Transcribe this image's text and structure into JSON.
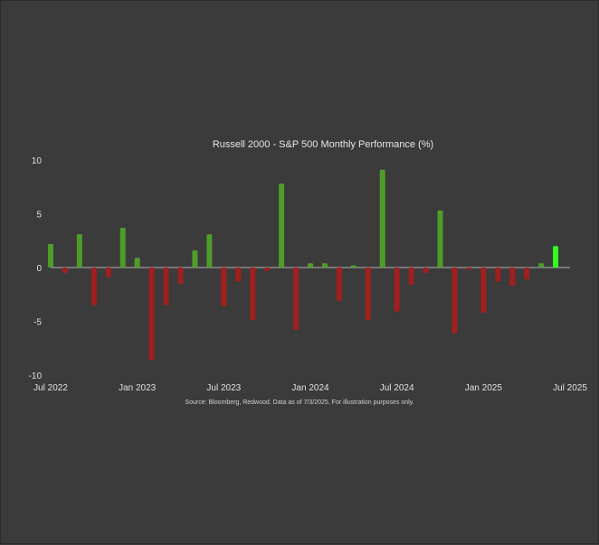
{
  "chart_data": {
    "type": "bar",
    "title": "Russell 2000 - S&P 500 Monthly Performance (%)",
    "source": "Source: Bloomberg, Redwood. Data as of 7/3/2025. For illustration purposes only.",
    "ylim": [
      -10,
      10
    ],
    "yticks": [
      10,
      5,
      0,
      -5,
      -10
    ],
    "xtick_labels": [
      "Jul 2022",
      "Jan 2023",
      "Jul 2023",
      "Jan 2024",
      "Jul 2024",
      "Jan 2025",
      "Jul 2025"
    ],
    "grid": false,
    "categories": [
      "Jul 2022",
      "Aug 2022",
      "Sep 2022",
      "Oct 2022",
      "Nov 2022",
      "Dec 2022",
      "Jan 2023",
      "Feb 2023",
      "Mar 2023",
      "Apr 2023",
      "May 2023",
      "Jun 2023",
      "Jul 2023",
      "Aug 2023",
      "Sep 2023",
      "Oct 2023",
      "Nov 2023",
      "Dec 2023",
      "Jan 2024",
      "Feb 2024",
      "Mar 2024",
      "Apr 2024",
      "May 2024",
      "Jun 2024",
      "Jul 2024",
      "Aug 2024",
      "Sep 2024",
      "Oct 2024",
      "Nov 2024",
      "Dec 2024",
      "Jan 2025",
      "Feb 2025",
      "Mar 2025",
      "Apr 2025",
      "May 2025",
      "Jun 2025",
      "Jul 2025"
    ],
    "values": [
      2.2,
      -0.5,
      3.1,
      -3.5,
      -0.9,
      3.7,
      0.9,
      -8.6,
      -3.5,
      -1.5,
      1.6,
      3.1,
      -3.6,
      -1.3,
      -4.9,
      -0.3,
      7.8,
      -5.8,
      0.4,
      0.4,
      -3.1,
      0.2,
      -4.9,
      9.1,
      -4.1,
      -1.6,
      -0.5,
      5.3,
      -6.1,
      -0.2,
      -4.2,
      -1.3,
      -1.7,
      -1.1,
      0.4,
      2.0,
      0.0
    ],
    "colors": {
      "positive": "#4f9c2a",
      "negative": "#a01f1f",
      "latest": "#33ff1f",
      "axis": "#d9d9d9"
    }
  }
}
